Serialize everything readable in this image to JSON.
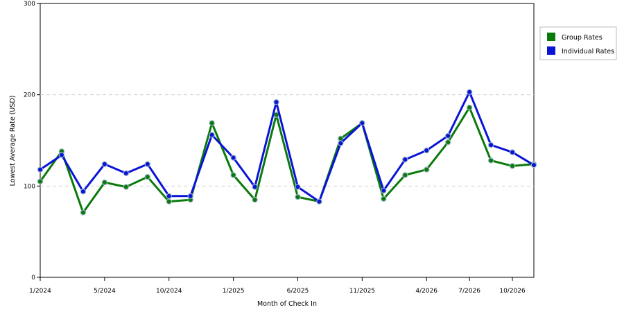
{
  "chart_data": {
    "type": "line",
    "title": "",
    "xlabel": "Month of Check In",
    "ylabel": "Lowest Average Rate (USD)",
    "ylim": [
      0,
      300
    ],
    "yticks": [
      0,
      100,
      200,
      300
    ],
    "x": [
      "1/2024",
      "2/2024",
      "3/2024",
      "5/2024",
      "6/2024",
      "8/2024",
      "10/2024",
      "11/2024",
      "12/2024",
      "1/2025",
      "2/2025",
      "3/2025",
      "6/2025",
      "7/2025",
      "9/2025",
      "11/2025",
      "1/2026",
      "3/2026",
      "4/2026",
      "6/2026",
      "7/2026",
      "8/2026",
      "10/2026",
      "11/2026"
    ],
    "xticks": [
      "1/2024",
      "5/2024",
      "10/2024",
      "1/2025",
      "6/2025",
      "11/2025",
      "4/2026",
      "7/2026",
      "10/2026"
    ],
    "grid": "horizontal-dashed",
    "legend_position": "right",
    "series": [
      {
        "name": "Group Rates",
        "color": "#0a7a0a",
        "values": [
          105,
          138,
          71,
          104,
          99,
          110,
          83,
          85,
          169,
          112,
          85,
          178,
          88,
          83,
          152,
          169,
          86,
          112,
          118,
          148,
          186,
          128,
          122,
          124
        ]
      },
      {
        "name": "Individual Rates",
        "color": "#0a14d6",
        "values": [
          118,
          134,
          94,
          124,
          114,
          124,
          89,
          89,
          156,
          131,
          99,
          192,
          99,
          83,
          147,
          169,
          95,
          129,
          139,
          155,
          203,
          145,
          137,
          123
        ]
      }
    ]
  }
}
